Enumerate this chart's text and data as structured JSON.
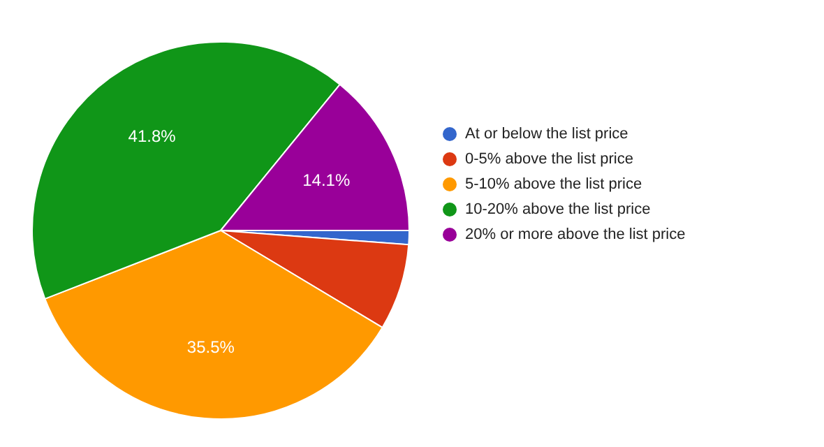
{
  "chart_data": {
    "type": "pie",
    "categories": [
      "At or below the list price",
      "0-5% above the list price",
      "5-10% above the list price",
      "10-20% above the list price",
      "20% or more above the list price"
    ],
    "values": [
      1.2,
      7.4,
      35.5,
      41.8,
      14.1
    ],
    "colors": [
      "#3366cc",
      "#dc3912",
      "#ff9900",
      "#109618",
      "#990099"
    ],
    "value_labels": [
      null,
      null,
      "35.5%",
      "41.8%",
      "14.1%"
    ],
    "legend": "right"
  }
}
